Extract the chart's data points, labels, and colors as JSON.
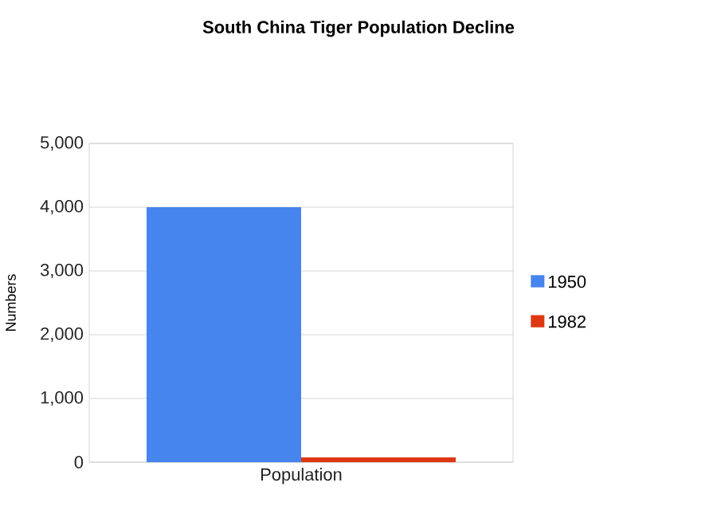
{
  "chart_data": {
    "type": "bar",
    "title": "South China Tiger Population Decline",
    "ylabel": "Numbers",
    "categories": [
      "Population"
    ],
    "series": [
      {
        "name": "1950",
        "color": "#4684ee",
        "values": [
          4000
        ]
      },
      {
        "name": "1982",
        "color": "#dc3912",
        "values": [
          75
        ]
      }
    ],
    "ylim": [
      0,
      5000
    ],
    "yticks": [
      {
        "value": 0,
        "label": "0"
      },
      {
        "value": 1000,
        "label": "1,000"
      },
      {
        "value": 2000,
        "label": "2,000"
      },
      {
        "value": 3000,
        "label": "3,000"
      },
      {
        "value": 4000,
        "label": "4,000"
      },
      {
        "value": 5000,
        "label": "5,000"
      }
    ],
    "grid": "y",
    "legend": "right"
  }
}
